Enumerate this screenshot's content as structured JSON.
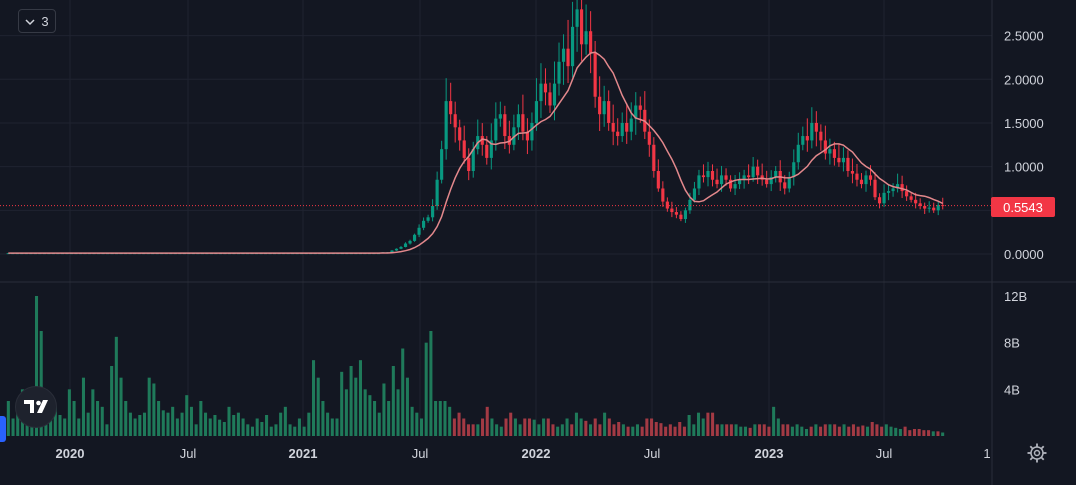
{
  "legend": {
    "indicator_count": "3",
    "icon": "chevron-down-icon"
  },
  "price_badge": {
    "value": "0.5543",
    "color": "#f23645"
  },
  "colors": {
    "up": "#089981",
    "down": "#f23645",
    "ma": "#e3888c",
    "background": "#131722",
    "grid": "#1f2330",
    "text": "#d1d4dc"
  },
  "icons": {
    "logo": "tradingview-logo-icon",
    "settings": "gear-icon"
  },
  "chart_data": [
    {
      "type": "candlestick",
      "description_of_axes": "weekly candles, price axis on right",
      "price_axis": {
        "ticks": [
          "0.0000",
          "0.5000",
          "1.0000",
          "1.5000",
          "2.0000",
          "2.5000"
        ],
        "range": [
          0,
          2.85
        ]
      },
      "time_axis": {
        "ticks": [
          "2020",
          "Jul",
          "2021",
          "Jul",
          "2022",
          "Jul",
          "2023",
          "Jul",
          "1"
        ]
      },
      "last_price": 0.5543,
      "closes": [
        0.01,
        0.01,
        0.01,
        0.01,
        0.01,
        0.01,
        0.01,
        0.01,
        0.01,
        0.01,
        0.01,
        0.01,
        0.01,
        0.01,
        0.01,
        0.01,
        0.01,
        0.01,
        0.01,
        0.01,
        0.01,
        0.01,
        0.01,
        0.01,
        0.01,
        0.01,
        0.01,
        0.01,
        0.01,
        0.01,
        0.01,
        0.01,
        0.01,
        0.01,
        0.01,
        0.01,
        0.01,
        0.01,
        0.01,
        0.01,
        0.01,
        0.01,
        0.01,
        0.01,
        0.01,
        0.01,
        0.01,
        0.01,
        0.01,
        0.01,
        0.01,
        0.01,
        0.01,
        0.01,
        0.01,
        0.01,
        0.01,
        0.01,
        0.01,
        0.01,
        0.01,
        0.01,
        0.01,
        0.01,
        0.01,
        0.01,
        0.01,
        0.01,
        0.01,
        0.01,
        0.01,
        0.01,
        0.01,
        0.01,
        0.01,
        0.01,
        0.01,
        0.01,
        0.01,
        0.01,
        0.01,
        0.01,
        0.01,
        0.02,
        0.02,
        0.04,
        0.06,
        0.08,
        0.12,
        0.15,
        0.22,
        0.3,
        0.38,
        0.42,
        0.55,
        0.85,
        1.2,
        1.75,
        1.6,
        1.45,
        1.3,
        1.1,
        0.95,
        1.2,
        1.35,
        1.25,
        1.1,
        1.3,
        1.55,
        1.6,
        1.35,
        1.25,
        1.45,
        1.6,
        1.4,
        1.3,
        1.5,
        1.75,
        1.95,
        1.85,
        1.7,
        1.95,
        2.2,
        2.35,
        2.15,
        2.6,
        2.8,
        2.4,
        2.55,
        2.3,
        1.8,
        1.6,
        1.75,
        1.5,
        1.4,
        1.35,
        1.5,
        1.4,
        1.55,
        1.7,
        1.65,
        1.4,
        1.25,
        0.95,
        0.75,
        0.6,
        0.52,
        0.48,
        0.45,
        0.4,
        0.5,
        0.62,
        0.75,
        0.9,
        0.88,
        0.95,
        0.85,
        0.8,
        0.9,
        0.85,
        0.75,
        0.8,
        0.85,
        0.9,
        0.88,
        1.0,
        0.9,
        0.85,
        0.8,
        0.88,
        0.95,
        0.82,
        0.75,
        0.88,
        1.05,
        1.25,
        1.35,
        1.3,
        1.5,
        1.4,
        1.3,
        1.15,
        1.2,
        1.1,
        1.05,
        1.1,
        0.95,
        0.92,
        0.85,
        0.8,
        0.9,
        0.85,
        0.65,
        0.58,
        0.7,
        0.72,
        0.75,
        0.8,
        0.72,
        0.66,
        0.62,
        0.58,
        0.55,
        0.52,
        0.53,
        0.5,
        0.56,
        0.5543
      ],
      "volume_axis": {
        "ticks": [
          "4B",
          "8B",
          "12B"
        ],
        "range": [
          0,
          12
        ]
      },
      "volumes_B": [
        3,
        1.5,
        2,
        4,
        2.5,
        3,
        12,
        9,
        4,
        3,
        2.5,
        1.8,
        1.5,
        4,
        3,
        1.5,
        5,
        2,
        4,
        3,
        2.5,
        1,
        6,
        8.5,
        5,
        3,
        2,
        1.5,
        1.8,
        2,
        5,
        4.5,
        3,
        2.2,
        2,
        2.5,
        1.5,
        2,
        3.5,
        2.5,
        1,
        3,
        2,
        1.5,
        1.8,
        1.4,
        1.2,
        2.5,
        1.8,
        2,
        1.5,
        1,
        0.8,
        1.5,
        1.2,
        1.8,
        0.8,
        1,
        2,
        2.5,
        1,
        0.8,
        1.5,
        0.8,
        2,
        6.5,
        5,
        3,
        2,
        1.5,
        1.5,
        5.5,
        4,
        6,
        5,
        6.5,
        4,
        3.5,
        3,
        2,
        4.5,
        3,
        6,
        4,
        7.5,
        5,
        2.5,
        2,
        1.5,
        8,
        9,
        3,
        3,
        3,
        2.5,
        1.5,
        2,
        1.5,
        1,
        1,
        1,
        1.5,
        2.5,
        1.5,
        1,
        0.8,
        1.5,
        2,
        1.5,
        1,
        1.5,
        1.5,
        1.4,
        1,
        1.5,
        1.5,
        1,
        0.8,
        1,
        1.5,
        1,
        2,
        1.5,
        1.3,
        1,
        1.5,
        1,
        2,
        1.5,
        1,
        1.2,
        1,
        0.8,
        0.8,
        1,
        0.8,
        1.5,
        1.5,
        1.2,
        1.1,
        0.8,
        1,
        0.8,
        1.2,
        0.8,
        1.8,
        1,
        2,
        1.5,
        2,
        2,
        1,
        1,
        1,
        1,
        1,
        0.8,
        0.8,
        0.7,
        1,
        1,
        1,
        0.8,
        2.5,
        1.5,
        1,
        1,
        0.8,
        1,
        0.8,
        0.6,
        0.8,
        1,
        0.8,
        1,
        1,
        1,
        0.8,
        1,
        0.8,
        1,
        0.8,
        0.9,
        0.8,
        1.2,
        1,
        0.8,
        1,
        0.8,
        0.7,
        0.6,
        0.8,
        0.5,
        0.6,
        0.6,
        0.5,
        0.5,
        0.4,
        0.4,
        0.3
      ]
    }
  ]
}
